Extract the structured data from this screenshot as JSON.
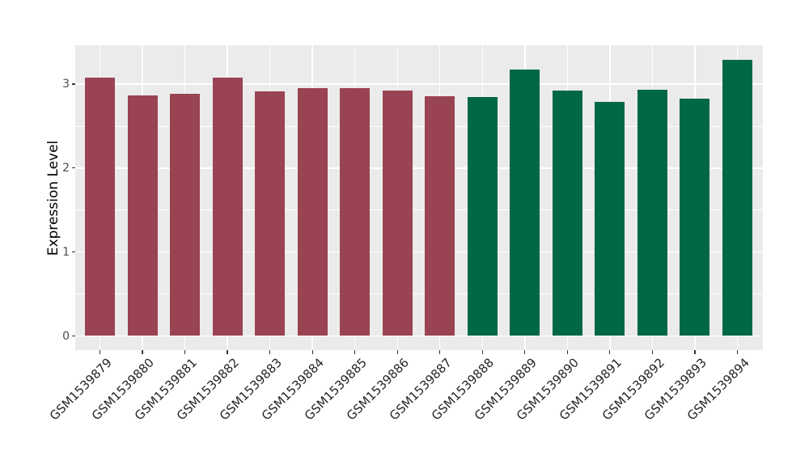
{
  "chart_data": {
    "type": "bar",
    "title": "",
    "xlabel": "",
    "ylabel": "Expression Level",
    "categories": [
      "GSM1539879",
      "GSM1539880",
      "GSM1539881",
      "GSM1539882",
      "GSM1539883",
      "GSM1539884",
      "GSM1539885",
      "GSM1539886",
      "GSM1539887",
      "GSM1539888",
      "GSM1539889",
      "GSM1539890",
      "GSM1539891",
      "GSM1539892",
      "GSM1539893",
      "GSM1539894"
    ],
    "values": [
      3.08,
      2.87,
      2.88,
      3.08,
      2.91,
      2.95,
      2.95,
      2.92,
      2.86,
      2.85,
      3.17,
      2.92,
      2.79,
      2.93,
      2.83,
      3.29
    ],
    "bar_colors": [
      "#9A4352",
      "#9A4352",
      "#9A4352",
      "#9A4352",
      "#9A4352",
      "#9A4352",
      "#9A4352",
      "#9A4352",
      "#9A4352",
      "#006747",
      "#006747",
      "#006747",
      "#006747",
      "#006747",
      "#006747",
      "#006747"
    ],
    "color_groups": [
      {
        "color": "#9A4352",
        "first": "GSM1539879",
        "last": "GSM1539887",
        "count": 9
      },
      {
        "color": "#006747",
        "first": "GSM1539888",
        "last": "GSM1539894",
        "count": 7
      }
    ],
    "yticks": [
      0,
      1,
      2,
      3
    ],
    "yticks_minor": [
      0.5,
      1.5,
      2.5
    ],
    "ylim": [
      0,
      3.46
    ],
    "x_tick_rotation_deg": 45,
    "grid": "on",
    "legend": "none",
    "colors": {
      "figure_background": "#FFFFFF",
      "panel_background": "#EBEBEB",
      "gridline": "#FFFFFF",
      "tick_mark": "#333333",
      "y_tick_label": "#4D4D4D",
      "x_tick_label": "#262626",
      "axis_title": "#000000"
    }
  }
}
